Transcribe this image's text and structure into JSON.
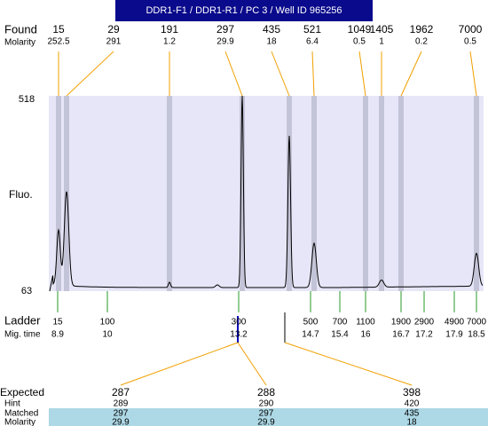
{
  "header": {
    "title": "DDR1-F1 / DDR1-R1 / PC 3 / Well ID 965256"
  },
  "found": {
    "label": "Found",
    "molarity_label": "Molarity",
    "sizes": [
      15,
      29,
      191,
      297,
      435,
      521,
      1049,
      1405,
      1962,
      7000
    ],
    "molarity": [
      252.5,
      291,
      1.2,
      29.9,
      18,
      6.4,
      0.5,
      1,
      0.2,
      0.5
    ]
  },
  "plot": {
    "y_label": "Fluo.",
    "yticks": [
      518,
      63
    ]
  },
  "ladder": {
    "label": "Ladder",
    "time_label": "Mig. time",
    "sizes": [
      15,
      100,
      300,
      500,
      700,
      1100,
      1900,
      2900,
      4900,
      7000
    ],
    "times": [
      8.9,
      10,
      13.2,
      14.7,
      15.4,
      16,
      16.7,
      17.2,
      17.9,
      18.5
    ]
  },
  "expected": {
    "label": "Expected",
    "hint_label": "Hint",
    "matched_label": "Matched",
    "molarity_label": "Molarity",
    "expected": [
      287,
      288,
      398
    ],
    "hint": [
      289,
      290,
      420
    ],
    "matched": [
      297,
      297,
      435
    ],
    "molarity": [
      29.9,
      29.9,
      18
    ]
  }
}
